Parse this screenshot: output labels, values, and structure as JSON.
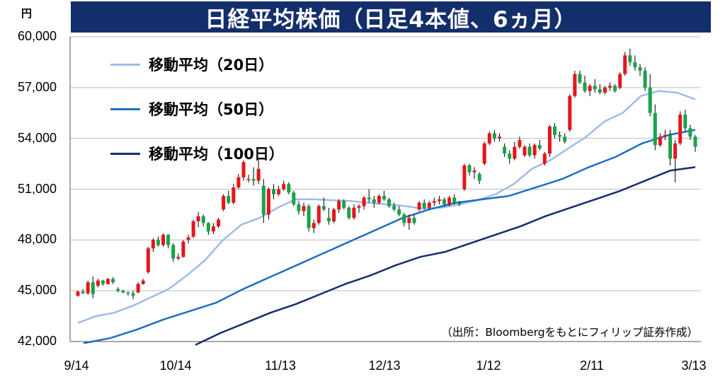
{
  "unit_label": "円",
  "title": "日経平均株価（日足4本値、6ヵ月）",
  "source_note": "（出所：Bloombergをもとにフィリップ証券作成）",
  "colors": {
    "title_bg": "#132f6b",
    "up": "#e8141b",
    "down": "#17a34a",
    "ma20": "#9dbde8",
    "ma50": "#1f6fbf",
    "ma100": "#132f6b"
  },
  "chart_data": {
    "type": "candlestick",
    "title": "日経平均株価（日足4本値、6ヵ月）",
    "ylim": [
      42000,
      60000
    ],
    "y_ticks": [
      "60,000",
      "57,000",
      "54,000",
      "51,000",
      "48,000",
      "45,000",
      "42,000"
    ],
    "x_ticks": [
      "9/14",
      "10/14",
      "11/13",
      "12/13",
      "1/12",
      "2/11",
      "3/13"
    ],
    "legend": [
      {
        "key": "ma20",
        "label": "移動平均（20日）"
      },
      {
        "key": "ma50",
        "label": "移動平均（50日）"
      },
      {
        "key": "ma100",
        "label": "移動平均（100日）"
      }
    ],
    "candles": [
      [
        44700,
        45000,
        44650,
        44950
      ],
      [
        44950,
        45100,
        44800,
        44850
      ],
      [
        44850,
        45600,
        44750,
        45500
      ],
      [
        45500,
        45850,
        44550,
        44800
      ],
      [
        45300,
        45700,
        45200,
        45600
      ],
      [
        45600,
        45650,
        45300,
        45400
      ],
      [
        45400,
        45750,
        45350,
        45700
      ],
      [
        45700,
        45800,
        45400,
        45500
      ],
      [
        45100,
        45200,
        44900,
        45000
      ],
      [
        45000,
        45050,
        44850,
        44900
      ],
      [
        44900,
        44950,
        44700,
        44850
      ],
      [
        44850,
        45000,
        44500,
        44700
      ],
      [
        44900,
        45500,
        44850,
        45400
      ],
      [
        45400,
        45700,
        45350,
        45600
      ],
      [
        46100,
        47600,
        46000,
        47500
      ],
      [
        47500,
        48100,
        47300,
        48000
      ],
      [
        48000,
        48200,
        47600,
        47700
      ],
      [
        47700,
        48400,
        47600,
        48300
      ],
      [
        48300,
        48350,
        47500,
        47700
      ],
      [
        47700,
        47800,
        46700,
        46900
      ],
      [
        46900,
        47200,
        46800,
        47000
      ],
      [
        47000,
        48000,
        46950,
        47900
      ],
      [
        48000,
        48300,
        47800,
        48150
      ],
      [
        48200,
        49200,
        48100,
        49100
      ],
      [
        49100,
        49650,
        48750,
        49400
      ],
      [
        49400,
        49500,
        48800,
        49000
      ],
      [
        49000,
        49050,
        48300,
        48500
      ],
      [
        48500,
        49000,
        48350,
        48800
      ],
      [
        48800,
        49300,
        48700,
        49200
      ],
      [
        49800,
        50700,
        49700,
        50600
      ],
      [
        50600,
        50900,
        50100,
        50200
      ],
      [
        50200,
        51300,
        50100,
        51100
      ],
      [
        51100,
        51900,
        51000,
        51700
      ],
      [
        51700,
        52700,
        51500,
        52600
      ],
      [
        51600,
        51850,
        51400,
        51600
      ],
      [
        51600,
        52300,
        51200,
        51500
      ],
      [
        51500,
        52700,
        51300,
        52200
      ],
      [
        51200,
        51600,
        49000,
        49500
      ],
      [
        49500,
        51100,
        49200,
        51000
      ],
      [
        51000,
        51300,
        50400,
        50700
      ],
      [
        50700,
        51200,
        50600,
        51000
      ],
      [
        51000,
        51500,
        50900,
        51300
      ],
      [
        51300,
        51400,
        50700,
        50800
      ],
      [
        50800,
        50900,
        50000,
        50100
      ],
      [
        50100,
        50300,
        49500,
        49700
      ],
      [
        49700,
        50200,
        49400,
        50000
      ],
      [
        50000,
        50100,
        48500,
        48700
      ],
      [
        48700,
        49200,
        48400,
        49000
      ],
      [
        49000,
        50100,
        48900,
        50000
      ],
      [
        50000,
        50500,
        49700,
        49800
      ],
      [
        49300,
        49900,
        48900,
        49100
      ],
      [
        49100,
        49900,
        49000,
        49800
      ],
      [
        49800,
        50400,
        49600,
        50300
      ],
      [
        50300,
        50400,
        49800,
        49900
      ],
      [
        49900,
        50000,
        49200,
        49300
      ],
      [
        49300,
        50100,
        49200,
        49900
      ],
      [
        49900,
        50100,
        49600,
        50000
      ],
      [
        50000,
        50600,
        49800,
        50500
      ],
      [
        50500,
        51000,
        50200,
        50400
      ],
      [
        50400,
        50600,
        49900,
        50200
      ],
      [
        50200,
        50700,
        50100,
        50600
      ],
      [
        50600,
        50900,
        50300,
        50400
      ],
      [
        50400,
        50500,
        49900,
        50000
      ],
      [
        50000,
        50200,
        49700,
        49800
      ],
      [
        49800,
        50000,
        49400,
        49500
      ],
      [
        49500,
        49600,
        48800,
        49000
      ],
      [
        49000,
        49500,
        48600,
        49300
      ],
      [
        49300,
        49500,
        48900,
        49000
      ],
      [
        49800,
        50300,
        49700,
        50200
      ],
      [
        50200,
        50400,
        49800,
        49900
      ],
      [
        49900,
        50300,
        49800,
        50200
      ],
      [
        50200,
        50500,
        50000,
        50300
      ],
      [
        50300,
        50600,
        50100,
        50400
      ],
      [
        50400,
        50500,
        50000,
        50100
      ],
      [
        50100,
        50600,
        50000,
        50500
      ],
      [
        50500,
        50700,
        50100,
        50200
      ],
      [
        50200,
        50300,
        50000,
        50100
      ],
      [
        51000,
        52500,
        50900,
        52400
      ],
      [
        52400,
        52500,
        51800,
        52000
      ],
      [
        52000,
        52300,
        51600,
        52100
      ],
      [
        51900,
        52000,
        51300,
        51500
      ],
      [
        52500,
        53800,
        52400,
        53700
      ],
      [
        53700,
        54400,
        53600,
        54300
      ],
      [
        54300,
        54500,
        53800,
        54000
      ],
      [
        54000,
        54300,
        53800,
        54100
      ],
      [
        53500,
        53700,
        52900,
        53100
      ],
      [
        53100,
        53300,
        52500,
        52800
      ],
      [
        52800,
        53800,
        52700,
        53500
      ],
      [
        53500,
        54100,
        53400,
        53900
      ],
      [
        53000,
        53600,
        52900,
        53500
      ],
      [
        53500,
        53700,
        52900,
        53000
      ],
      [
        53000,
        53700,
        52800,
        53600
      ],
      [
        53600,
        53900,
        53300,
        53400
      ],
      [
        52500,
        53200,
        52400,
        53100
      ],
      [
        53100,
        54800,
        52900,
        54700
      ],
      [
        54700,
        54900,
        54000,
        54200
      ],
      [
        54200,
        54400,
        53800,
        54100
      ],
      [
        54100,
        54300,
        53700,
        53800
      ],
      [
        54500,
        56600,
        54400,
        56500
      ],
      [
        56500,
        58000,
        56400,
        57800
      ],
      [
        57800,
        58000,
        57200,
        57300
      ],
      [
        57300,
        57700,
        56700,
        56800
      ],
      [
        56800,
        57200,
        56500,
        57100
      ],
      [
        57100,
        57500,
        56700,
        56900
      ],
      [
        56900,
        57200,
        56600,
        56700
      ],
      [
        56700,
        57100,
        56600,
        57000
      ],
      [
        57000,
        57300,
        56800,
        57100
      ],
      [
        57100,
        57200,
        56700,
        56800
      ],
      [
        57000,
        57900,
        56900,
        57800
      ],
      [
        57800,
        59100,
        57700,
        58900
      ],
      [
        58900,
        59300,
        58300,
        58500
      ],
      [
        58500,
        58900,
        58000,
        58200
      ],
      [
        58200,
        58400,
        57700,
        58000
      ],
      [
        58000,
        58200,
        56800,
        57000
      ],
      [
        57000,
        57800,
        55300,
        55500
      ],
      [
        55500,
        56000,
        53300,
        53600
      ],
      [
        53600,
        54300,
        53500,
        54100
      ],
      [
        54100,
        54500,
        53900,
        54200
      ],
      [
        54200,
        54500,
        52400,
        52800
      ],
      [
        52800,
        53900,
        51400,
        53700
      ],
      [
        53700,
        55600,
        53600,
        55400
      ],
      [
        55400,
        55700,
        54400,
        54600
      ],
      [
        54600,
        54800,
        53900,
        54100
      ],
      [
        54100,
        54200,
        53200,
        53500
      ]
    ],
    "ma20": [
      43100,
      43500,
      43700,
      44100,
      44600,
      45100,
      45900,
      46800,
      48000,
      48900,
      49300,
      49900,
      50400,
      50400,
      50350,
      50300,
      50200,
      50100,
      50000,
      49850,
      49900,
      50100,
      50350,
      50700,
      51300,
      52200,
      52700,
      53400,
      54100,
      55000,
      55500,
      56500,
      56800,
      56700,
      56300
    ],
    "ma50": [
      41900,
      42200,
      42700,
      43300,
      43800,
      44300,
      45100,
      45800,
      46500,
      47200,
      47900,
      48600,
      49300,
      49800,
      50200,
      50400,
      50600,
      51100,
      51600,
      52300,
      52900,
      53700,
      54200,
      54500
    ],
    "ma100": [
      41800,
      42500,
      43100,
      43700,
      44200,
      44800,
      45400,
      45900,
      46500,
      47000,
      47300,
      47800,
      48300,
      48800,
      49400,
      49900,
      50400,
      50900,
      51500,
      52100,
      52300
    ]
  }
}
